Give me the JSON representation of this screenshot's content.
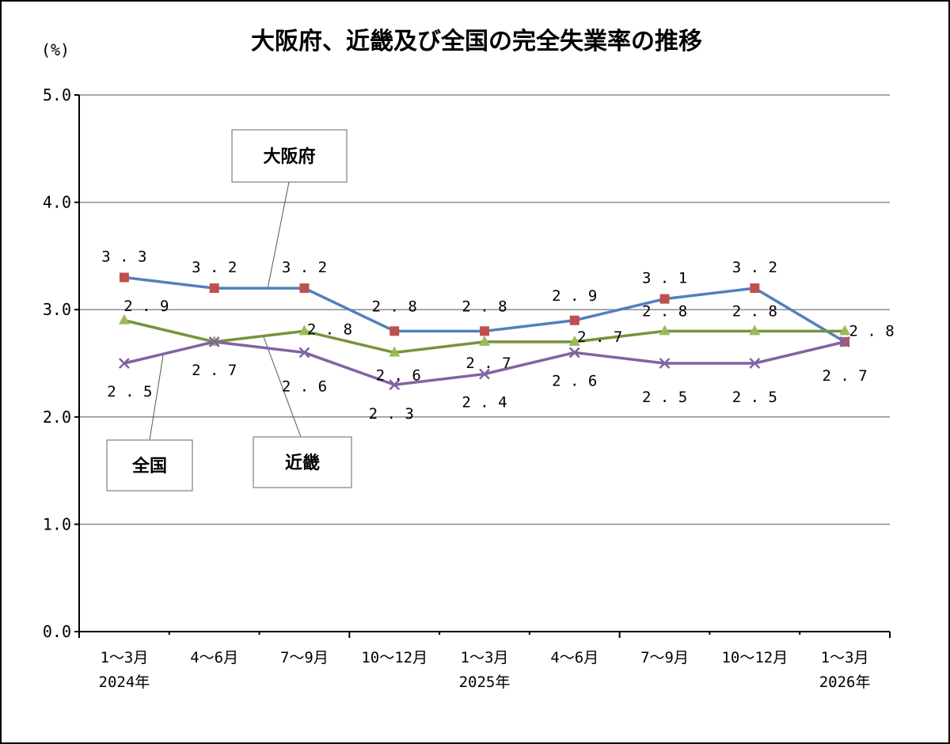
{
  "chart_data": {
    "type": "line",
    "title": "大阪府、近畿及び全国の完全失業率の推移",
    "ylabel": "(%)",
    "ylim": [
      0,
      5
    ],
    "yticks": [
      "0.0",
      "1.0",
      "2.0",
      "3.0",
      "4.0",
      "5.0"
    ],
    "grid": true,
    "categories": [
      [
        "1～3月",
        "2024年"
      ],
      [
        "4～6月",
        ""
      ],
      [
        "7～9月",
        ""
      ],
      [
        "10～12月",
        ""
      ],
      [
        "1～3月",
        "2025年"
      ],
      [
        "4～6月",
        ""
      ],
      [
        "7～9月",
        ""
      ],
      [
        "10～12月",
        ""
      ],
      [
        "1～3月",
        "2026年"
      ]
    ],
    "series": [
      {
        "name": "大阪府",
        "values": [
          3.3,
          3.2,
          3.2,
          2.8,
          2.8,
          2.9,
          3.1,
          3.2,
          2.7
        ],
        "labels": [
          "3.3",
          "3.2",
          "3.2",
          "2.8",
          "2.8",
          "2.9",
          "3.1",
          "3.2",
          ""
        ],
        "color": "#4f81bd",
        "marker_color": "#c0504d",
        "marker": "square"
      },
      {
        "name": "全国",
        "values": [
          2.9,
          2.7,
          2.8,
          2.6,
          2.7,
          2.7,
          2.8,
          2.8,
          2.8
        ],
        "labels": [
          "2.9",
          "",
          "2.8",
          "2.6",
          "2.7",
          "2.7",
          "2.8",
          "2.8",
          "2.8"
        ],
        "color": "#77933c",
        "marker_color": "#9bbb59",
        "marker": "triangle"
      },
      {
        "name": "近畿",
        "values": [
          2.5,
          2.7,
          2.6,
          2.3,
          2.4,
          2.6,
          2.5,
          2.5,
          2.7
        ],
        "labels": [
          "2.5",
          "2.7",
          "2.6",
          "2.3",
          "2.4",
          "2.6",
          "2.5",
          "2.5",
          "2.7"
        ],
        "color": "#8064a2",
        "marker_color": "#8064a2",
        "marker": "x"
      }
    ]
  }
}
